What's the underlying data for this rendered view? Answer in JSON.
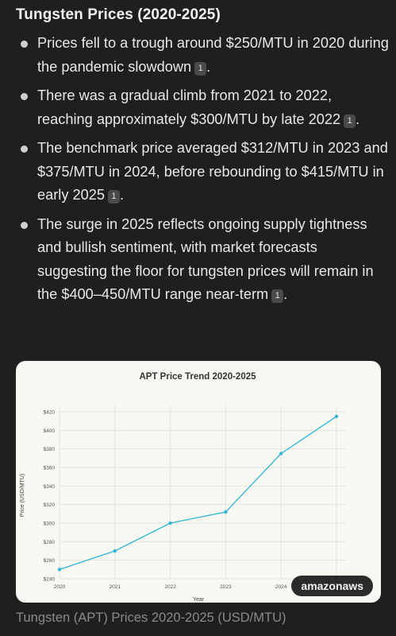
{
  "heading": "Tungsten Prices (2020-2025)",
  "bullets": [
    {
      "text": "Prices fell to a trough around $250/MTU in 2020 during the pandemic slowdown",
      "cite": "1"
    },
    {
      "text": "There was a gradual climb from 2021 to 2022, reaching approximately $300/MTU by late 2022",
      "cite": "1"
    },
    {
      "text": "The benchmark price averaged $312/MTU in 2023 and $375/MTU in 2024, before rebounding to $415/MTU in early 2025",
      "cite": "1"
    },
    {
      "text": "The surge in 2025 reflects ongoing supply tightness and bullish sentiment, with market forecasts suggesting the floor for tungsten prices will remain in the $400–450/MTU range near-term",
      "cite": "1"
    }
  ],
  "chart_data": {
    "type": "line",
    "title": "APT Price Trend 2020-2025",
    "xlabel": "Year",
    "ylabel": "Price (USD/MTU)",
    "x": [
      2020,
      2021,
      2022,
      2023,
      2024,
      2025
    ],
    "x_tick_labels": [
      "2020",
      "2021",
      "2022",
      "2023",
      "2024"
    ],
    "series": [
      {
        "values": [
          250,
          270,
          300,
          312,
          375,
          415
        ]
      }
    ],
    "ylim": [
      240,
      420
    ],
    "y_ticks": [
      "$240",
      "$260",
      "$280",
      "$300",
      "$320",
      "$340",
      "$360",
      "$380",
      "$400",
      "$420"
    ],
    "grid": true,
    "line_color": "#2fb5d2"
  },
  "badge": "amazonaws",
  "caption": "Tungsten (APT) Prices 2020-2025 (USD/MTU)"
}
